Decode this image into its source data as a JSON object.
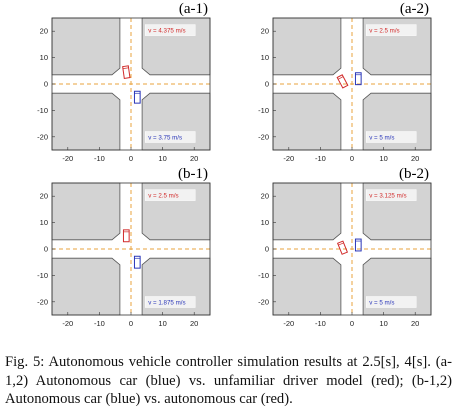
{
  "figure": {
    "colors": {
      "block_fill": "#d3d3d3",
      "block_stroke": "#555555",
      "lane_line": "#e8a33d",
      "red_car": "#d12a2a",
      "blue_car": "#2a36b8",
      "label_box": "#f2f2f2"
    },
    "panels": [
      {
        "label": "(a-1)",
        "red_speed": "v = 4.375 m/s",
        "blue_speed": "v = 3.75 m/s",
        "red_car": {
          "x": -1.5,
          "y": 4.5,
          "heading_deg": -8
        },
        "blue_car": {
          "x": 2,
          "y": -5,
          "heading_deg": 0
        }
      },
      {
        "label": "(a-2)",
        "red_speed": "v = 2.5 m/s",
        "blue_speed": "v = 5 m/s",
        "red_car": {
          "x": -3,
          "y": 1,
          "heading_deg": -28
        },
        "blue_car": {
          "x": 2,
          "y": 2,
          "heading_deg": 0
        }
      },
      {
        "label": "(b-1)",
        "red_speed": "v = 2.5 m/s",
        "blue_speed": "v = 1.875 m/s",
        "red_car": {
          "x": -1.5,
          "y": 5,
          "heading_deg": 0
        },
        "blue_car": {
          "x": 2,
          "y": -5,
          "heading_deg": 0
        }
      },
      {
        "label": "(b-2)",
        "red_speed": "v = 3.125 m/s",
        "blue_speed": "v = 5 m/s",
        "red_car": {
          "x": -3,
          "y": 0.5,
          "heading_deg": -22
        },
        "blue_car": {
          "x": 2,
          "y": 1.5,
          "heading_deg": 0
        }
      }
    ],
    "axes": {
      "xlim": [
        -25,
        25
      ],
      "ylim": [
        -25,
        25
      ],
      "x_ticks": [
        "-20",
        "-10",
        "0",
        "10",
        "20"
      ],
      "y_ticks": [
        "20",
        "10",
        "0",
        "-10",
        "-20"
      ]
    }
  },
  "caption": {
    "text": "Fig. 5: Autonomous vehicle controller simulation results at 2.5[s], 4[s]. (a-1,2) Autonomous car (blue) vs. unfamiliar driver model (red); (b-1,2) Autonomous car (blue) vs. autonomous car (red)."
  }
}
